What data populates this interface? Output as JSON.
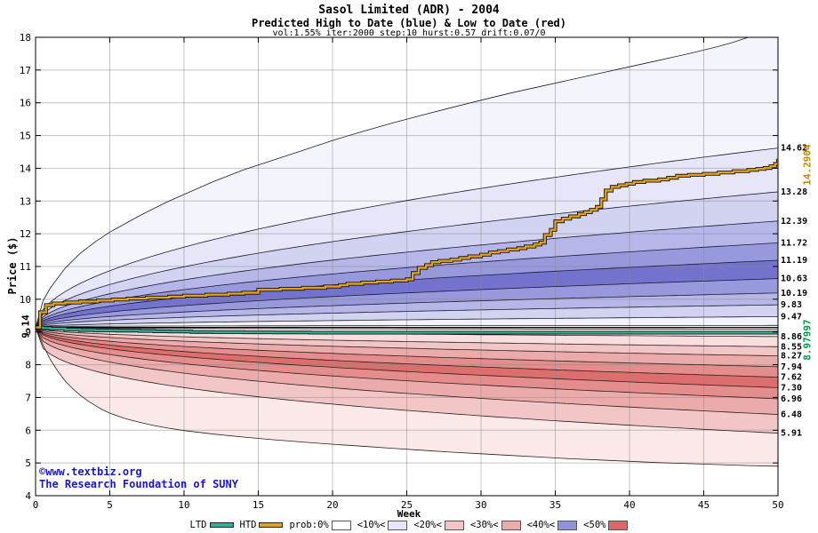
{
  "chart_data": {
    "type": "area",
    "title": "Sasol Limited (ADR) - 2004",
    "subtitle": "Predicted High to Date (blue) & Low to Date (red)",
    "params_line": "vol:1.55% iter:2000 step:10 hurst:0.57 drift:0.07/0",
    "xlabel": "Week",
    "ylabel": "Price ($)",
    "xlim": [
      0,
      50
    ],
    "ylim": [
      4,
      18
    ],
    "x_ticks": [
      0,
      5,
      10,
      15,
      20,
      25,
      30,
      35,
      40,
      45,
      50
    ],
    "y_ticks": [
      4,
      5,
      6,
      7,
      8,
      9,
      10,
      11,
      12,
      13,
      14,
      15,
      16,
      17,
      18
    ],
    "grid": true,
    "start_price": {
      "value": 9.14,
      "label": "9.14"
    },
    "high_fan": {
      "stroke": "#1c1c30",
      "band_colors": [
        "#f4f4fd",
        "#e6e6f8",
        "#d2d2f1",
        "#b6b6e8",
        "#9898dd",
        "#7373ce",
        "#9898dd",
        "#b6b6e8",
        "#d2d2f1",
        "#f2f2fb"
      ],
      "boundaries": [
        {
          "label": "",
          "points": [
            [
              0,
              9.14
            ],
            [
              0.5,
              9.95
            ],
            [
              1,
              10.35
            ],
            [
              1.5,
              10.65
            ],
            [
              2,
              10.95
            ],
            [
              3,
              11.4
            ],
            [
              4,
              11.75
            ],
            [
              5,
              12.05
            ],
            [
              6,
              12.3
            ],
            [
              7,
              12.55
            ],
            [
              8,
              12.78
            ],
            [
              9,
              13.0
            ],
            [
              10,
              13.2
            ],
            [
              12,
              13.6
            ],
            [
              14,
              13.95
            ],
            [
              16,
              14.25
            ],
            [
              18,
              14.55
            ],
            [
              20,
              14.85
            ],
            [
              22,
              15.12
            ],
            [
              24,
              15.38
            ],
            [
              26,
              15.62
            ],
            [
              28,
              15.85
            ],
            [
              30,
              16.08
            ],
            [
              32,
              16.3
            ],
            [
              34,
              16.5
            ],
            [
              36,
              16.7
            ],
            [
              38,
              16.9
            ],
            [
              40,
              17.1
            ],
            [
              42,
              17.3
            ],
            [
              44,
              17.5
            ],
            [
              46,
              17.72
            ],
            [
              47,
              17.85
            ],
            [
              48,
              18.0
            ],
            [
              49,
              18.2
            ],
            [
              50,
              18.42
            ]
          ]
        },
        {
          "label": "14.62",
          "end": 14.62,
          "p": 0.5
        },
        {
          "label": "13.28",
          "end": 13.28,
          "p": 0.5
        },
        {
          "label": "12.39",
          "end": 12.39,
          "p": 0.5
        },
        {
          "label": "11.72",
          "end": 11.72,
          "p": 0.5
        },
        {
          "label": "11.19",
          "end": 11.19,
          "p": 0.5
        },
        {
          "label": "10.63",
          "end": 10.63,
          "p": 0.5
        },
        {
          "label": "10.19",
          "end": 10.19,
          "p": 0.5
        },
        {
          "label": "9.83",
          "end": 9.83,
          "p": 0.5
        },
        {
          "label": "9.47",
          "end": 9.47,
          "p": 0.5
        },
        {
          "label": "",
          "end": 9.2,
          "p": 0.2
        }
      ]
    },
    "low_fan": {
      "stroke": "#301c1c",
      "band_colors": [
        "#fcf1f1",
        "#f8dede",
        "#f2c6c6",
        "#ecabab",
        "#e58d8d",
        "#dd6e6e",
        "#e58d8d",
        "#ecabab",
        "#f2c6c6",
        "#fbe9e9"
      ],
      "boundaries": [
        {
          "label": "",
          "end": 9.09,
          "p": 0.2
        },
        {
          "label": "8.86",
          "end": 8.86,
          "p": 0.45
        },
        {
          "label": "8.55",
          "end": 8.55,
          "p": 0.45
        },
        {
          "label": "8.27",
          "end": 8.27,
          "p": 0.45
        },
        {
          "label": "7.94",
          "end": 7.94,
          "p": 0.45
        },
        {
          "label": "7.62",
          "end": 7.62,
          "p": 0.45
        },
        {
          "label": "7.30",
          "end": 7.3,
          "p": 0.45
        },
        {
          "label": "6.96",
          "end": 6.96,
          "p": 0.42
        },
        {
          "label": "6.48",
          "end": 6.48,
          "p": 0.4
        },
        {
          "label": "5.91",
          "end": 5.91,
          "p": 0.35
        },
        {
          "label": "",
          "points": [
            [
              0,
              9.14
            ],
            [
              0.5,
              8.6
            ],
            [
              1,
              8.15
            ],
            [
              1.5,
              7.8
            ],
            [
              2,
              7.5
            ],
            [
              2.5,
              7.27
            ],
            [
              3,
              7.07
            ],
            [
              3.5,
              6.9
            ],
            [
              4,
              6.76
            ],
            [
              4.5,
              6.63
            ],
            [
              5,
              6.52
            ],
            [
              6,
              6.36
            ],
            [
              7,
              6.24
            ],
            [
              8,
              6.14
            ],
            [
              9,
              6.06
            ],
            [
              10,
              5.99
            ],
            [
              12,
              5.88
            ],
            [
              14,
              5.79
            ],
            [
              16,
              5.71
            ],
            [
              18,
              5.64
            ],
            [
              20,
              5.57
            ],
            [
              22,
              5.51
            ],
            [
              24,
              5.45
            ],
            [
              26,
              5.39
            ],
            [
              28,
              5.33
            ],
            [
              30,
              5.28
            ],
            [
              32,
              5.23
            ],
            [
              34,
              5.18
            ],
            [
              36,
              5.13
            ],
            [
              38,
              5.09
            ],
            [
              40,
              5.05
            ],
            [
              42,
              5.01
            ],
            [
              44,
              4.98
            ],
            [
              46,
              4.95
            ],
            [
              48,
              4.92
            ],
            [
              50,
              4.9
            ]
          ]
        }
      ]
    },
    "htd": {
      "name": "HTD",
      "color": "#e2a218",
      "edge_color": "#101010",
      "final_value": 14.2904,
      "final_label": "14.2904",
      "label_color": "#c68a00",
      "steps": [
        [
          0,
          9.14
        ],
        [
          0.3,
          9.6
        ],
        [
          0.7,
          9.82
        ],
        [
          1.2,
          9.87
        ],
        [
          2,
          9.9
        ],
        [
          3,
          9.93
        ],
        [
          4.2,
          9.96
        ],
        [
          5.2,
          9.99
        ],
        [
          6.2,
          10.02
        ],
        [
          7.5,
          10.05
        ],
        [
          9,
          10.08
        ],
        [
          10,
          10.11
        ],
        [
          11.5,
          10.14
        ],
        [
          13,
          10.17
        ],
        [
          14,
          10.2
        ],
        [
          15,
          10.29
        ],
        [
          16.5,
          10.32
        ],
        [
          18,
          10.35
        ],
        [
          19.5,
          10.39
        ],
        [
          20.5,
          10.43
        ],
        [
          21,
          10.47
        ],
        [
          22,
          10.51
        ],
        [
          23,
          10.54
        ],
        [
          24,
          10.57
        ],
        [
          25,
          10.61
        ],
        [
          25.4,
          10.8
        ],
        [
          25.8,
          10.96
        ],
        [
          26.3,
          11.04
        ],
        [
          26.7,
          11.13
        ],
        [
          27.2,
          11.17
        ],
        [
          28,
          11.21
        ],
        [
          28.6,
          11.26
        ],
        [
          29.2,
          11.31
        ],
        [
          30,
          11.36
        ],
        [
          30.6,
          11.43
        ],
        [
          31.2,
          11.47
        ],
        [
          31.8,
          11.52
        ],
        [
          32.5,
          11.56
        ],
        [
          33,
          11.61
        ],
        [
          33.6,
          11.67
        ],
        [
          34,
          11.73
        ],
        [
          34.3,
          11.96
        ],
        [
          34.7,
          12.12
        ],
        [
          35,
          12.38
        ],
        [
          35.5,
          12.46
        ],
        [
          36,
          12.53
        ],
        [
          36.6,
          12.6
        ],
        [
          37,
          12.66
        ],
        [
          37.4,
          12.73
        ],
        [
          37.8,
          12.82
        ],
        [
          38.1,
          13.05
        ],
        [
          38.4,
          13.32
        ],
        [
          38.8,
          13.43
        ],
        [
          39.3,
          13.48
        ],
        [
          39.8,
          13.53
        ],
        [
          40.3,
          13.58
        ],
        [
          41,
          13.62
        ],
        [
          42,
          13.66
        ],
        [
          42.6,
          13.71
        ],
        [
          43.2,
          13.77
        ],
        [
          44,
          13.8
        ],
        [
          45,
          13.83
        ],
        [
          46,
          13.87
        ],
        [
          47,
          13.91
        ],
        [
          48,
          13.95
        ],
        [
          48.6,
          13.98
        ],
        [
          49.1,
          14.01
        ],
        [
          49.5,
          14.06
        ],
        [
          49.8,
          14.13
        ],
        [
          50,
          14.29
        ]
      ]
    },
    "ltd": {
      "name": "LTD",
      "color": "#2eb09a",
      "edge_color": "#101010",
      "final_value": 8.97997,
      "final_label": "8.97997",
      "label_color": "#009a44",
      "steps": [
        [
          0,
          9.14
        ],
        [
          0.5,
          9.12
        ],
        [
          1,
          9.1
        ],
        [
          2,
          9.08
        ],
        [
          3,
          9.06
        ],
        [
          4,
          9.05
        ],
        [
          5.5,
          9.04
        ],
        [
          7,
          9.03
        ],
        [
          8,
          9.02
        ],
        [
          9,
          9.01
        ],
        [
          10.5,
          9.0
        ],
        [
          12,
          8.995
        ],
        [
          14,
          8.99
        ],
        [
          16,
          8.985
        ],
        [
          18.5,
          8.98
        ],
        [
          50,
          8.98
        ]
      ]
    }
  },
  "watermark": {
    "line1": "©www.textbiz.org",
    "line2": "The Research Foundation of SUNY",
    "color": "#1717cf"
  },
  "legend": {
    "items": [
      {
        "label": "LTD",
        "swatch": "line",
        "color": "#2eb09a"
      },
      {
        "label": "HTD",
        "swatch": "line",
        "color": "#e2a218"
      },
      {
        "label": "prob:0%",
        "swatch": "box",
        "color": "#ffffff"
      },
      {
        "label": "<10%<",
        "swatch": "box",
        "color": "#e6e6f8"
      },
      {
        "label": "<20%<",
        "swatch": "box",
        "color": "#f2c6c6"
      },
      {
        "label": "<30%<",
        "swatch": "box",
        "color": "#ecabab"
      },
      {
        "label": "<40%<",
        "swatch": "box",
        "color": "#9292db"
      },
      {
        "label": "<50%",
        "swatch": "box",
        "color": "#dd6666"
      }
    ]
  }
}
